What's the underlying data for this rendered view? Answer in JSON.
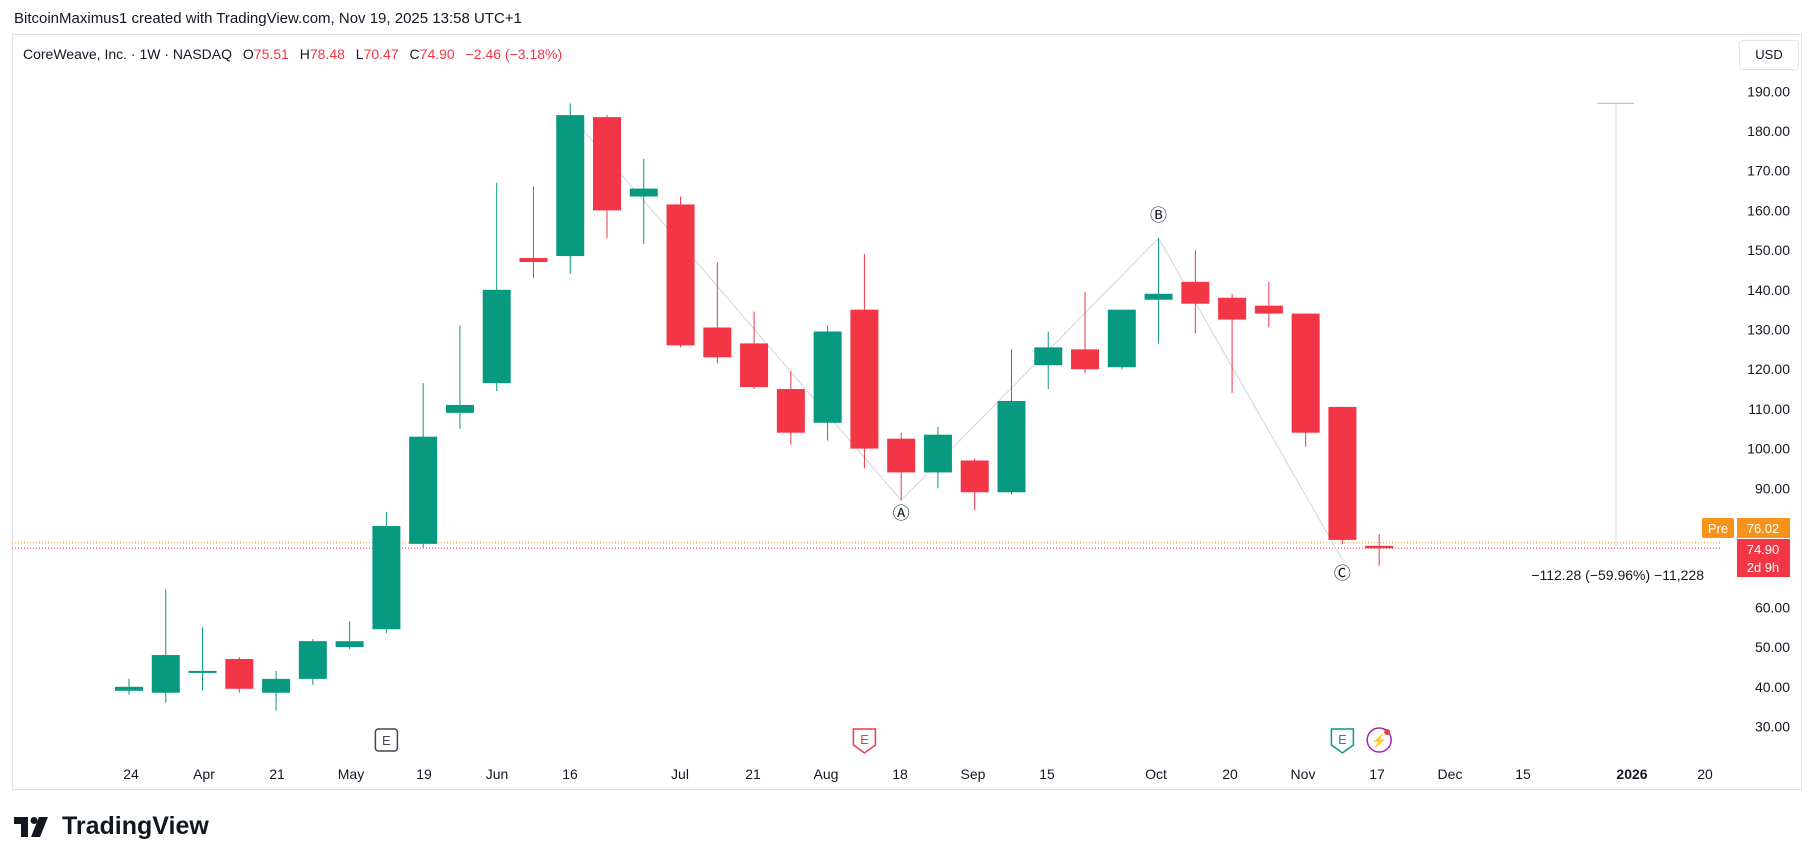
{
  "attribution": "BitcoinMaximus1 created with TradingView.com, Nov 19, 2025 13:58 UTC+1",
  "header": {
    "symbol": "CoreWeave, Inc. · 1W · NASDAQ",
    "open_label": "O",
    "open": "75.51",
    "high_label": "H",
    "high": "78.48",
    "low_label": "L",
    "low": "70.47",
    "close_label": "C",
    "close": "74.90",
    "change": "−2.46 (−3.18%)"
  },
  "currency": "USD",
  "brand": "TradingView",
  "colors": {
    "up": "#089981",
    "down": "#f23645",
    "premarket": "#f7931a",
    "text": "#131722"
  },
  "chart_data": {
    "type": "candlestick",
    "timeframe": "1W",
    "ylim": [
      25,
      195
    ],
    "y_ticks": [
      "190.00",
      "180.00",
      "170.00",
      "160.00",
      "150.00",
      "140.00",
      "130.00",
      "120.00",
      "110.00",
      "100.00",
      "90.00",
      "60.00",
      "50.00",
      "40.00",
      "30.00"
    ],
    "x_ticks": [
      "24",
      "Apr",
      "21",
      "May",
      "19",
      "Jun",
      "16",
      "Jul",
      "21",
      "Aug",
      "18",
      "Sep",
      "15",
      "Oct",
      "20",
      "Nov",
      "17",
      "Dec",
      "15",
      "2026",
      "20"
    ],
    "x_ticks_bold": [
      "2026"
    ],
    "candles": [
      {
        "o": 39,
        "h": 42,
        "l": 38,
        "c": 40
      },
      {
        "o": 38.5,
        "h": 64.5,
        "l": 36,
        "c": 48
      },
      {
        "o": 44,
        "h": 55,
        "l": 39,
        "c": 44
      },
      {
        "o": 47,
        "h": 47.5,
        "l": 38.5,
        "c": 39.5
      },
      {
        "o": 38.5,
        "h": 44,
        "l": 34,
        "c": 42
      },
      {
        "o": 42,
        "h": 52,
        "l": 40.5,
        "c": 51.5
      },
      {
        "o": 50,
        "h": 56.5,
        "l": 49.5,
        "c": 51.5
      },
      {
        "o": 54.5,
        "h": 84,
        "l": 53.5,
        "c": 80.5
      },
      {
        "o": 76,
        "h": 116.5,
        "l": 75,
        "c": 103
      },
      {
        "o": 109,
        "h": 131,
        "l": 105,
        "c": 111
      },
      {
        "o": 116.5,
        "h": 167,
        "l": 114.5,
        "c": 140
      },
      {
        "o": 148,
        "h": 166,
        "l": 143,
        "c": 147
      },
      {
        "o": 148.5,
        "h": 187,
        "l": 144,
        "c": 184
      },
      {
        "o": 183.5,
        "h": 184,
        "l": 153,
        "c": 160
      },
      {
        "o": 163.5,
        "h": 173,
        "l": 151.5,
        "c": 165.5
      },
      {
        "o": 161.5,
        "h": 163.5,
        "l": 125.5,
        "c": 126
      },
      {
        "o": 130.5,
        "h": 147,
        "l": 121.5,
        "c": 123
      },
      {
        "o": 126.5,
        "h": 134.5,
        "l": 115,
        "c": 115.5
      },
      {
        "o": 115,
        "h": 119.5,
        "l": 101,
        "c": 104
      },
      {
        "o": 106.5,
        "h": 131,
        "l": 102,
        "c": 129.5
      },
      {
        "o": 135,
        "h": 149,
        "l": 95,
        "c": 100
      },
      {
        "o": 102.5,
        "h": 104,
        "l": 87,
        "c": 94
      },
      {
        "o": 94,
        "h": 105.5,
        "l": 90,
        "c": 103.5
      },
      {
        "o": 97,
        "h": 97.5,
        "l": 84.5,
        "c": 89
      },
      {
        "o": 89,
        "h": 125,
        "l": 88.5,
        "c": 112
      },
      {
        "o": 121,
        "h": 129.5,
        "l": 115,
        "c": 125.5
      },
      {
        "o": 125,
        "h": 139.5,
        "l": 119,
        "c": 120
      },
      {
        "o": 120.5,
        "h": 135,
        "l": 120,
        "c": 135
      },
      {
        "o": 137.5,
        "h": 153,
        "l": 126.5,
        "c": 139
      },
      {
        "o": 142,
        "h": 150,
        "l": 129,
        "c": 136.5
      },
      {
        "o": 138,
        "h": 139,
        "l": 114,
        "c": 132.5
      },
      {
        "o": 136,
        "h": 142,
        "l": 130.5,
        "c": 134
      },
      {
        "o": 134,
        "h": 134,
        "l": 100.5,
        "c": 104
      },
      {
        "o": 110.5,
        "h": 110.5,
        "l": 76,
        "c": 77
      },
      {
        "o": 75.51,
        "h": 78.48,
        "l": 70.47,
        "c": 74.9
      }
    ],
    "abc_pattern": [
      {
        "label": "Ⓐ",
        "candle": 21,
        "value": 87
      },
      {
        "label": "Ⓑ",
        "candle": 28,
        "value": 153
      },
      {
        "label": "Ⓒ",
        "candle": 33,
        "value": 72
      }
    ],
    "abc_path": [
      {
        "candle": 12,
        "value": 184
      },
      {
        "candle": 21,
        "value": 87
      },
      {
        "candle": 28,
        "value": 153
      },
      {
        "candle": 33,
        "value": 72
      }
    ],
    "price_lines": [
      {
        "label": "Pre",
        "value": 76.02,
        "text": "76.02",
        "color": "#f7931a"
      },
      {
        "label": "",
        "value": 74.9,
        "text": "74.90",
        "sub": "2d 9h",
        "color": "#f23645"
      }
    ],
    "measure": {
      "from": 187,
      "to": 74.9,
      "text": "−112.28 (−59.96%) −11,228"
    },
    "event_markers": [
      {
        "candle": 7,
        "label": "E",
        "kind": "earnings-past"
      },
      {
        "candle": 20,
        "label": "E",
        "kind": "earnings-past-red"
      },
      {
        "candle": 33,
        "label": "E",
        "kind": "earnings-upcoming"
      },
      {
        "candle": 34,
        "label": "⚡",
        "kind": "dividend-split"
      }
    ]
  }
}
